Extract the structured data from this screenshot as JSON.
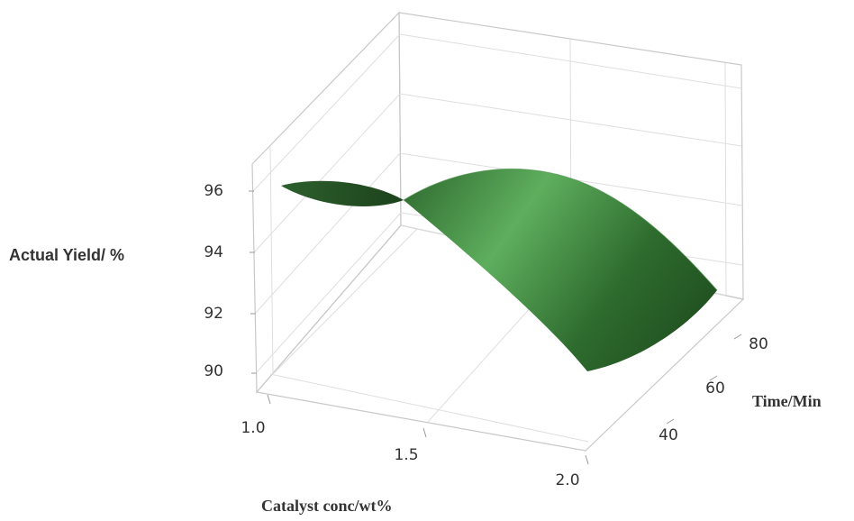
{
  "chart_data": {
    "type": "surface",
    "zlabel": "Actual Yield/ %",
    "xlabel": "Catalyst conc/wt%",
    "ylabel": "Time/Min",
    "x_ticks": [
      "1.0",
      "1.5",
      "2.0"
    ],
    "y_ticks": [
      "40",
      "60",
      "80"
    ],
    "z_ticks": [
      "90",
      "92",
      "94",
      "96"
    ],
    "xlim": [
      1.0,
      2.0
    ],
    "ylim": [
      30,
      90
    ],
    "zlim": [
      89,
      97
    ],
    "surface_color": "#3f8a3f",
    "grid": true,
    "surface_points": [
      {
        "x": 1.0,
        "y": 30,
        "z": 96.1
      },
      {
        "x": 1.0,
        "y": 60,
        "z": 95.5
      },
      {
        "x": 1.0,
        "y": 90,
        "z": 96.1
      },
      {
        "x": 1.5,
        "y": 30,
        "z": 95.8
      },
      {
        "x": 1.5,
        "y": 60,
        "z": 95.2
      },
      {
        "x": 1.5,
        "y": 90,
        "z": 95.8
      },
      {
        "x": 2.0,
        "y": 30,
        "z": 89.3
      },
      {
        "x": 2.0,
        "y": 60,
        "z": 88.7
      },
      {
        "x": 2.0,
        "y": 90,
        "z": 89.3
      }
    ]
  }
}
